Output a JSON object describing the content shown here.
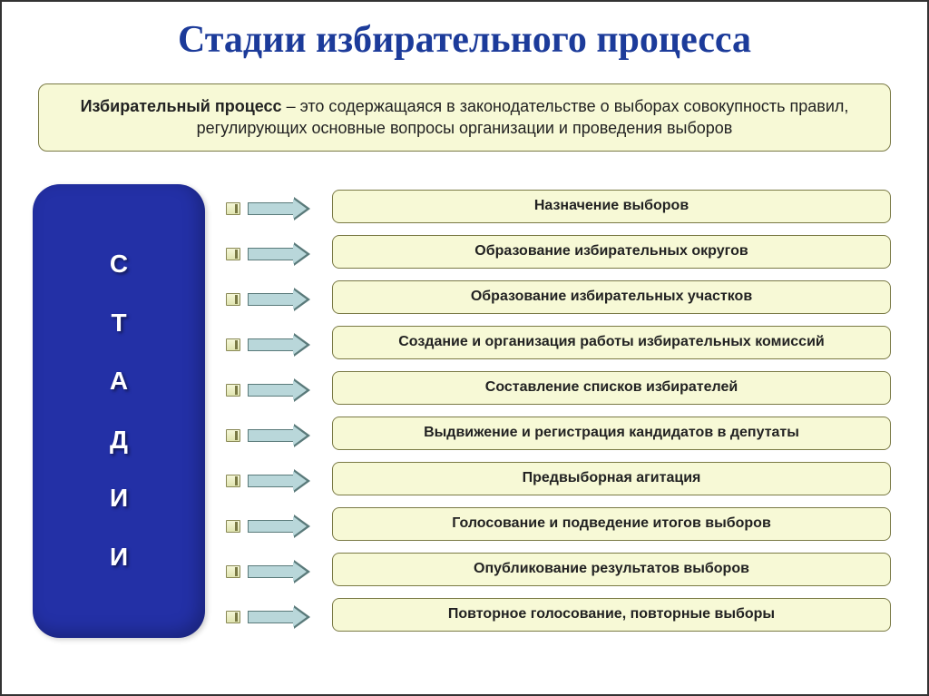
{
  "title": {
    "text": "Стадии избирательного процесса",
    "color": "#1c3b9a",
    "fontsize": 42
  },
  "definition": {
    "term": "Избирательный процесс",
    "rest": " – это содержащаяся в законодательстве о выборах совокупность правил, регулирующих основные вопросы организации и проведения выборов",
    "bg": "#f7f9d6",
    "fontsize": 18,
    "color": "#222222"
  },
  "stages_pill": {
    "letters": [
      "С",
      "Т",
      "А",
      "Д",
      "И",
      "И"
    ],
    "bg": "#2330a6",
    "text_color": "#ffffff",
    "fontsize": 28
  },
  "arrow": {
    "fill": "#b9d7da",
    "stroke": "#5a7a7a"
  },
  "items": [
    "Назначение выборов",
    "Образование избирательных округов",
    "Образование избирательных участков",
    "Создание и организация работы избирательных комиссий",
    "Составление списков избирателей",
    "Выдвижение и регистрация кандидатов в депутаты",
    "Предвыборная агитация",
    "Голосование и подведение итогов выборов",
    "Опубликование результатов выборов",
    "Повторное голосование, повторные выборы"
  ],
  "item_style": {
    "bg": "#f7f9d6",
    "color": "#222222",
    "fontsize": 16
  }
}
